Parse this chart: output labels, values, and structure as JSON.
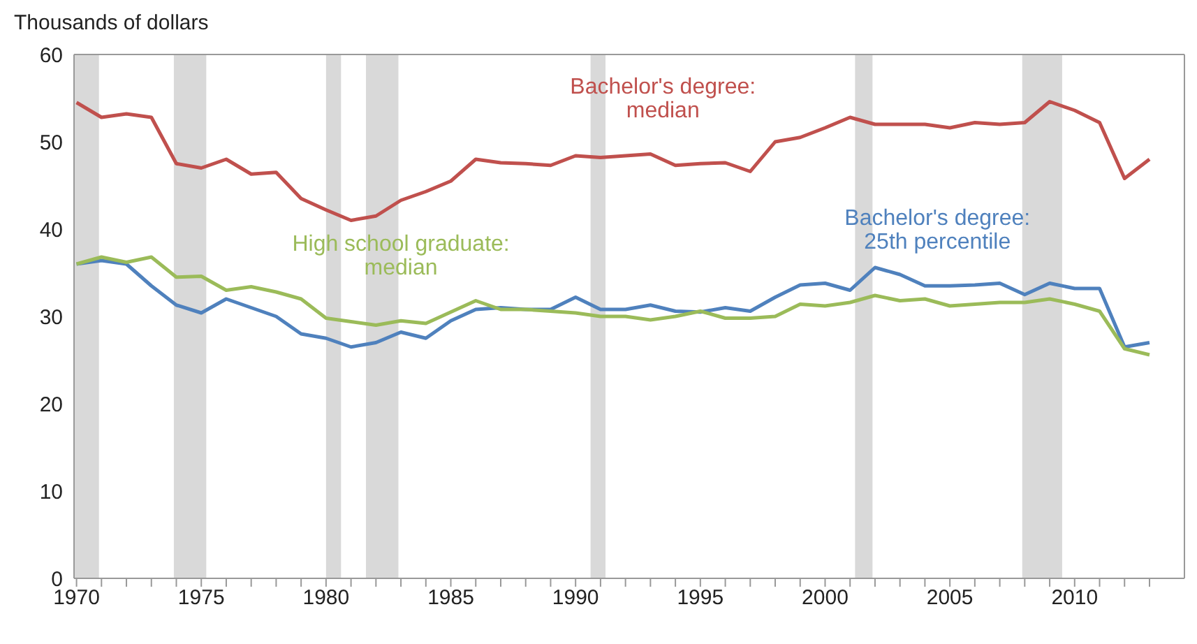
{
  "chart_data": {
    "type": "line",
    "ylabel": "Thousands of dollars",
    "x": [
      1970,
      1971,
      1972,
      1973,
      1974,
      1975,
      1976,
      1977,
      1978,
      1979,
      1980,
      1981,
      1982,
      1983,
      1984,
      1985,
      1986,
      1987,
      1988,
      1989,
      1990,
      1991,
      1992,
      1993,
      1994,
      1995,
      1996,
      1997,
      1998,
      1999,
      2000,
      2001,
      2002,
      2003,
      2004,
      2005,
      2006,
      2007,
      2008,
      2009,
      2010,
      2011,
      2012,
      2013
    ],
    "series": [
      {
        "name": "Bachelor's degree: median",
        "color": "#c0504d",
        "values": [
          54.5,
          52.8,
          53.2,
          52.8,
          47.5,
          47.0,
          48.0,
          46.3,
          46.5,
          43.5,
          42.2,
          41.0,
          41.5,
          43.3,
          44.3,
          45.5,
          48.0,
          47.6,
          47.5,
          47.3,
          48.4,
          48.2,
          48.4,
          48.6,
          47.3,
          47.5,
          47.6,
          46.6,
          50.0,
          50.5,
          51.6,
          52.8,
          52.0,
          52.0,
          52.0,
          51.6,
          52.2,
          52.0,
          52.2,
          54.6,
          53.6,
          52.2,
          45.8,
          48.0
        ]
      },
      {
        "name": "Bachelor's degree: 25th percentile",
        "color": "#4f81bd",
        "values": [
          36.0,
          36.4,
          36.0,
          33.5,
          31.3,
          30.4,
          32.0,
          31.0,
          30.0,
          28.0,
          27.5,
          26.5,
          27.0,
          28.2,
          27.5,
          29.5,
          30.8,
          31.0,
          30.8,
          30.8,
          32.2,
          30.8,
          30.8,
          31.3,
          30.6,
          30.5,
          31.0,
          30.6,
          32.2,
          33.6,
          33.8,
          33.0,
          35.6,
          34.8,
          33.5,
          33.5,
          33.6,
          33.8,
          32.5,
          33.8,
          33.2,
          33.2,
          26.5,
          27.0
        ]
      },
      {
        "name": "High school graduate: median",
        "color": "#9bbb59",
        "values": [
          36.0,
          36.8,
          36.2,
          36.8,
          34.5,
          34.6,
          33.0,
          33.4,
          32.8,
          32.0,
          29.8,
          29.4,
          29.0,
          29.5,
          29.2,
          30.5,
          31.8,
          30.8,
          30.8,
          30.6,
          30.4,
          30.0,
          30.0,
          29.6,
          30.0,
          30.6,
          29.8,
          29.8,
          30.0,
          31.4,
          31.2,
          31.6,
          32.4,
          31.8,
          32.0,
          31.2,
          31.4,
          31.6,
          31.6,
          32.0,
          31.4,
          30.6,
          26.3,
          25.6
        ]
      }
    ],
    "xlim": [
      1969.9,
      2014.4
    ],
    "xticks": [
      1970,
      {
        "value": 1971,
        "label": null
      },
      {
        "value": 1972,
        "label": null
      },
      {
        "value": 1973,
        "label": null
      },
      {
        "value": 1974,
        "label": null
      },
      1975,
      {
        "value": 1976,
        "label": null
      },
      {
        "value": 1977,
        "label": null
      },
      {
        "value": 1978,
        "label": null
      },
      {
        "value": 1979,
        "label": null
      },
      1980,
      {
        "value": 1981,
        "label": null
      },
      {
        "value": 1982,
        "label": null
      },
      {
        "value": 1983,
        "label": null
      },
      {
        "value": 1984,
        "label": null
      },
      1985,
      {
        "value": 1986,
        "label": null
      },
      {
        "value": 1987,
        "label": null
      },
      {
        "value": 1988,
        "label": null
      },
      {
        "value": 1989,
        "label": null
      },
      1990,
      {
        "value": 1991,
        "label": null
      },
      {
        "value": 1992,
        "label": null
      },
      {
        "value": 1993,
        "label": null
      },
      {
        "value": 1994,
        "label": null
      },
      1995,
      {
        "value": 1996,
        "label": null
      },
      {
        "value": 1997,
        "label": null
      },
      {
        "value": 1998,
        "label": null
      },
      {
        "value": 1999,
        "label": null
      },
      2000,
      {
        "value": 2001,
        "label": null
      },
      {
        "value": 2002,
        "label": null
      },
      {
        "value": 2003,
        "label": null
      },
      {
        "value": 2004,
        "label": null
      },
      2005,
      {
        "value": 2006,
        "label": null
      },
      {
        "value": 2007,
        "label": null
      },
      {
        "value": 2008,
        "label": null
      },
      {
        "value": 2009,
        "label": null
      },
      2010,
      {
        "value": 2011,
        "label": null
      },
      {
        "value": 2012,
        "label": null
      },
      {
        "value": 2013,
        "label": null
      }
    ],
    "ylim": [
      0,
      60
    ],
    "yticks": [
      0,
      10,
      20,
      30,
      40,
      50,
      60
    ],
    "bands": [
      {
        "axis": "x",
        "from": 1969.9,
        "to": 1970.9,
        "color": "#d9d9d9"
      },
      {
        "axis": "x",
        "from": 1973.9,
        "to": 1975.2,
        "color": "#d9d9d9"
      },
      {
        "axis": "x",
        "from": 1980.0,
        "to": 1980.6,
        "color": "#d9d9d9"
      },
      {
        "axis": "x",
        "from": 1981.6,
        "to": 1982.9,
        "color": "#d9d9d9"
      },
      {
        "axis": "x",
        "from": 1990.6,
        "to": 1991.2,
        "color": "#d9d9d9"
      },
      {
        "axis": "x",
        "from": 2001.2,
        "to": 2001.9,
        "color": "#d9d9d9"
      },
      {
        "axis": "x",
        "from": 2007.9,
        "to": 2009.5,
        "color": "#d9d9d9"
      }
    ],
    "grid": false,
    "legend": false,
    "marker": "none",
    "line_style": "solid"
  }
}
